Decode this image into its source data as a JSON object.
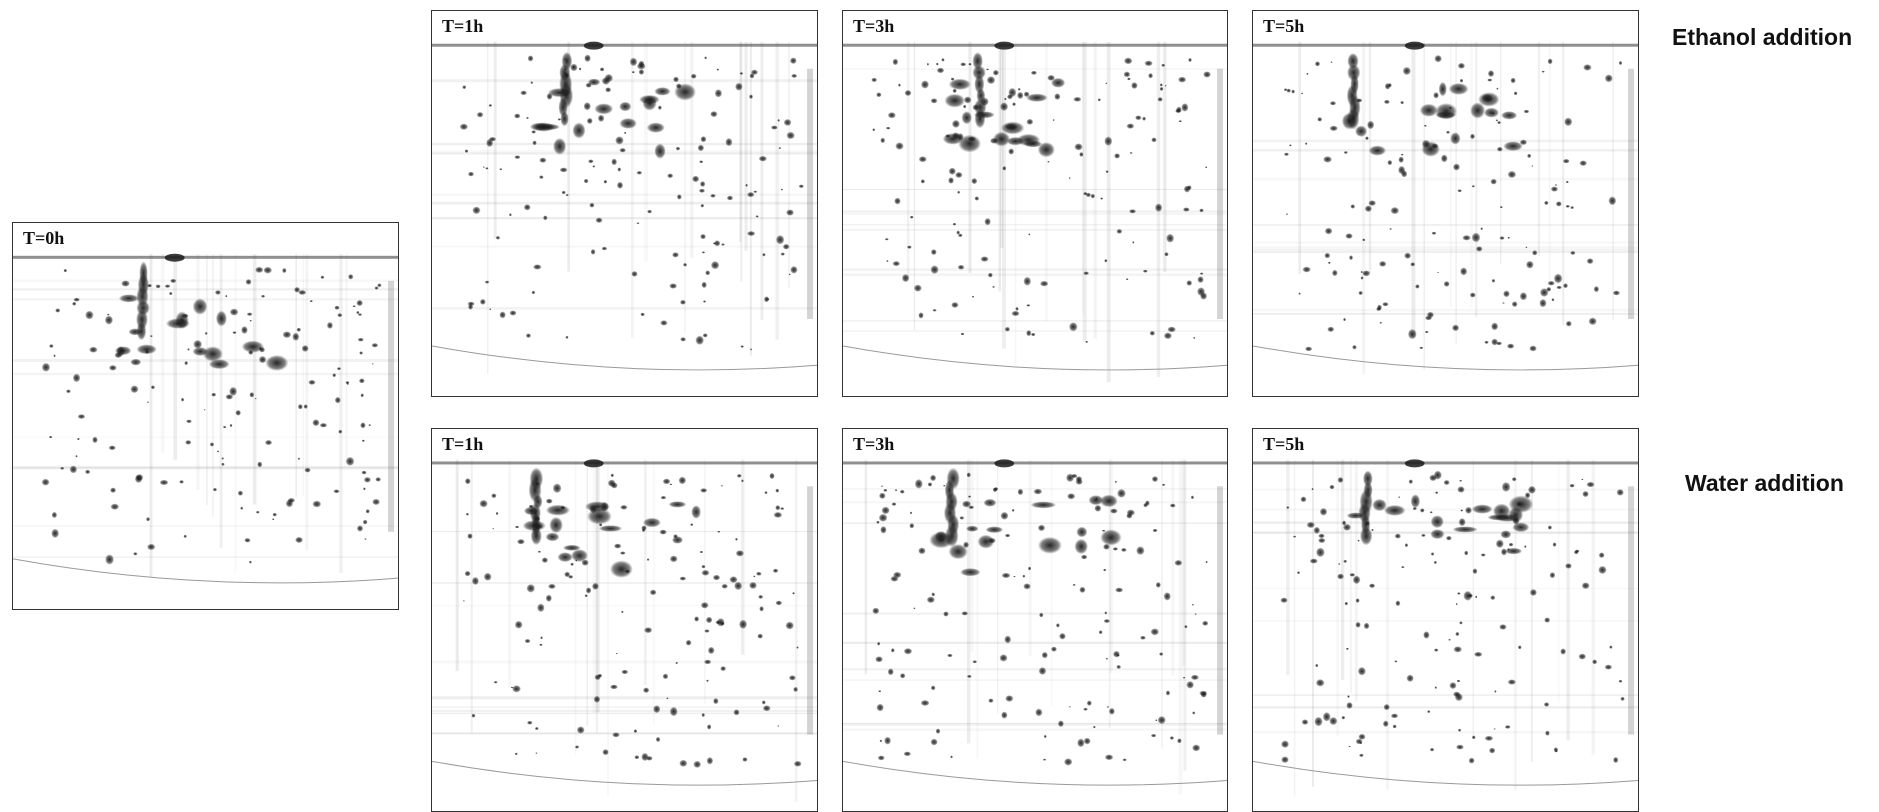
{
  "gels": [
    {
      "id": "t0",
      "label": "T=0h",
      "seed": 11,
      "condition": "baseline"
    },
    {
      "id": "eth1",
      "label": "T=1h",
      "seed": 23,
      "condition": "ethanol"
    },
    {
      "id": "eth3",
      "label": "T=3h",
      "seed": 37,
      "condition": "ethanol"
    },
    {
      "id": "eth5",
      "label": "T=5h",
      "seed": 41,
      "condition": "ethanol"
    },
    {
      "id": "wat1",
      "label": "T=1h",
      "seed": 53,
      "condition": "water"
    },
    {
      "id": "wat3",
      "label": "T=3h",
      "seed": 67,
      "condition": "water"
    },
    {
      "id": "wat5",
      "label": "T=5h",
      "seed": 79,
      "condition": "water"
    }
  ],
  "row_labels": {
    "ethanol": "Ethanol addition",
    "water": "Water addition"
  },
  "colors": {
    "spot": "#1a1a1a",
    "border": "#333333",
    "background": "#ffffff"
  }
}
